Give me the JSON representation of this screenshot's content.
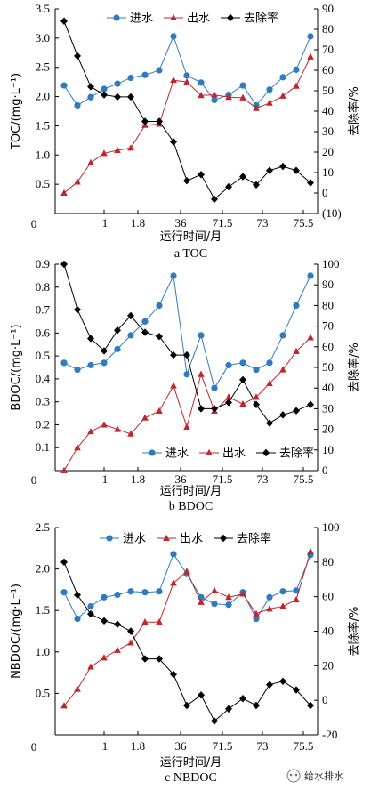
{
  "chart_data": [
    {
      "type": "line",
      "caption": "a TOC",
      "xlabel": "运行时间/月",
      "ylabel_left": "TOC/(mg·L⁻¹)",
      "ylabel_right": "去除率/%",
      "x_tick_labels": [
        "0",
        "1",
        "1.8",
        "36",
        "71.5",
        "73",
        "75.5"
      ],
      "ylim_left": [
        0,
        3.5
      ],
      "yticks_left": [
        "0",
        "0.5",
        "1.0",
        "1.5",
        "2.0",
        "2.5",
        "3.0",
        "3.5"
      ],
      "ylim_right": [
        -10,
        90
      ],
      "yticks_right": [
        "(10)",
        "0",
        "10",
        "20",
        "30",
        "40",
        "50",
        "60",
        "70",
        "80",
        "90"
      ],
      "series": [
        {
          "name": "进水",
          "axis": "left",
          "color": "#2e7bc0",
          "marker": "circle",
          "values": [
            2.19,
            1.85,
            1.99,
            2.13,
            2.22,
            2.32,
            2.37,
            2.45,
            3.03,
            2.36,
            2.24,
            1.94,
            2.03,
            2.19,
            1.85,
            2.12,
            2.33,
            2.46,
            3.03
          ]
        },
        {
          "name": "出水",
          "axis": "left",
          "color": "#c0272d",
          "marker": "triangle",
          "values": [
            0.35,
            0.54,
            0.87,
            1.03,
            1.08,
            1.12,
            1.51,
            1.53,
            2.28,
            2.25,
            2.02,
            2.03,
            1.99,
            1.98,
            1.8,
            1.89,
            2.01,
            2.18,
            2.68
          ]
        },
        {
          "name": "去除率",
          "axis": "right",
          "color": "#000000",
          "marker": "diamond",
          "values": [
            84,
            67,
            52,
            48,
            47,
            47,
            35,
            35,
            25,
            6,
            9,
            -3,
            3,
            8,
            4,
            11,
            13,
            11,
            5
          ]
        }
      ]
    },
    {
      "type": "line",
      "caption": "b BDOC",
      "xlabel": "运行时间/月",
      "ylabel_left": "BDOC/(mg·L⁻¹)",
      "ylabel_right": "去除率/%",
      "x_tick_labels": [
        "0",
        "1",
        "1.8",
        "36",
        "71.5",
        "73",
        "75.5"
      ],
      "ylim_left": [
        0,
        0.9
      ],
      "yticks_left": [
        "0",
        "0.1",
        "0.2",
        "0.3",
        "0.4",
        "0.5",
        "0.6",
        "0.7",
        "0.8",
        "0.9"
      ],
      "ylim_right": [
        0,
        100
      ],
      "yticks_right": [
        "0",
        "10",
        "20",
        "30",
        "40",
        "50",
        "60",
        "70",
        "80",
        "90",
        "100"
      ],
      "series": [
        {
          "name": "进水",
          "axis": "left",
          "color": "#2e7bc0",
          "marker": "circle",
          "values": [
            0.47,
            0.44,
            0.46,
            0.47,
            0.53,
            0.59,
            0.65,
            0.72,
            0.85,
            0.42,
            0.59,
            0.36,
            0.46,
            0.47,
            0.44,
            0.47,
            0.59,
            0.72,
            0.85
          ]
        },
        {
          "name": "出水",
          "axis": "left",
          "color": "#c0272d",
          "marker": "triangle",
          "values": [
            0.0,
            0.1,
            0.17,
            0.2,
            0.18,
            0.16,
            0.23,
            0.26,
            0.37,
            0.19,
            0.42,
            0.26,
            0.32,
            0.29,
            0.32,
            0.38,
            0.44,
            0.52,
            0.58
          ]
        },
        {
          "name": "去除率",
          "axis": "right",
          "color": "#000000",
          "marker": "diamond",
          "values": [
            100,
            78,
            64,
            58,
            68,
            75,
            67,
            65,
            56,
            56,
            30,
            30,
            33,
            44,
            32,
            23,
            27,
            29,
            32
          ]
        }
      ]
    },
    {
      "type": "line",
      "caption": "c NBDOC",
      "xlabel": "运行时间/月",
      "ylabel_left": "NBDOC/(mg·L⁻¹)",
      "ylabel_right": "去除率/%",
      "x_tick_labels": [
        "0",
        "1",
        "1.8",
        "36",
        "71.5",
        "73",
        "75.5"
      ],
      "ylim_left": [
        0,
        2.5
      ],
      "yticks_left": [
        "0",
        "0.5",
        "1.0",
        "1.5",
        "2.0",
        "2.5"
      ],
      "ylim_right": [
        -20,
        100
      ],
      "yticks_right": [
        "-20",
        "0",
        "20",
        "40",
        "60",
        "80",
        "100"
      ],
      "series": [
        {
          "name": "进水",
          "axis": "left",
          "color": "#2e7bc0",
          "marker": "circle",
          "values": [
            1.72,
            1.4,
            1.55,
            1.66,
            1.69,
            1.73,
            1.72,
            1.73,
            2.18,
            1.94,
            1.66,
            1.58,
            1.57,
            1.72,
            1.4,
            1.66,
            1.73,
            1.74,
            2.17
          ]
        },
        {
          "name": "出水",
          "axis": "left",
          "color": "#c0272d",
          "marker": "triangle",
          "values": [
            0.35,
            0.55,
            0.82,
            0.93,
            1.02,
            1.11,
            1.36,
            1.36,
            1.83,
            1.97,
            1.6,
            1.74,
            1.66,
            1.7,
            1.46,
            1.52,
            1.55,
            1.63,
            2.21
          ]
        },
        {
          "name": "去除率",
          "axis": "right",
          "color": "#000000",
          "marker": "diamond",
          "values": [
            80,
            61,
            50,
            46,
            44,
            40,
            24,
            24,
            15,
            -3,
            3,
            -12,
            -5,
            1,
            -3,
            9,
            11,
            6,
            -3
          ]
        }
      ]
    }
  ],
  "watermark": {
    "text": "给水排水"
  }
}
